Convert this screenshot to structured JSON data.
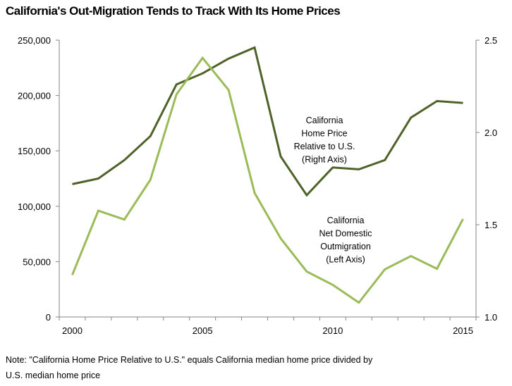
{
  "chart_data": {
    "type": "line",
    "title": "California's Out-Migration Tends to Track With Its Home Prices",
    "x": [
      2000,
      2001,
      2002,
      2003,
      2004,
      2005,
      2006,
      2007,
      2008,
      2009,
      2010,
      2011,
      2012,
      2013,
      2014,
      2015
    ],
    "x_tick_labels": [
      "2000",
      "2005",
      "2010",
      "2015"
    ],
    "x_tick_values": [
      2000,
      2005,
      2010,
      2015
    ],
    "left_axis": {
      "ylim": [
        0,
        250000
      ],
      "ticks": [
        "0",
        "50,000",
        "100,000",
        "150,000",
        "200,000",
        "250,000"
      ],
      "tick_values": [
        0,
        50000,
        100000,
        150000,
        200000,
        250000
      ]
    },
    "right_axis": {
      "ylim": [
        1.0,
        2.5
      ],
      "ticks": [
        "1.0",
        "1.5",
        "2.0",
        "2.5"
      ],
      "tick_values": [
        1.0,
        1.5,
        2.0,
        2.5
      ]
    },
    "series": [
      {
        "name": "California Home Price Relative to U.S. (Right Axis)",
        "axis": "right",
        "color": "#4f6228",
        "values": [
          1.72,
          1.75,
          1.85,
          1.98,
          2.26,
          2.32,
          2.4,
          2.46,
          1.87,
          1.66,
          1.81,
          1.8,
          1.85,
          2.08,
          2.17,
          2.16
        ]
      },
      {
        "name": "California Net Domestic Outmigration (Left Axis)",
        "axis": "left",
        "color": "#9bbb59",
        "values": [
          38000,
          96000,
          88000,
          124000,
          201000,
          234000,
          205000,
          112000,
          71000,
          41000,
          29000,
          13000,
          43000,
          55000,
          43500,
          88500
        ]
      }
    ],
    "annotations": [
      {
        "series": 0,
        "lines": [
          "California",
          "Home Price",
          "Relative to U.S.",
          "(Right Axis)"
        ]
      },
      {
        "series": 1,
        "lines": [
          "California",
          "Net Domestic",
          "Outmigration",
          "(Left Axis)"
        ]
      }
    ],
    "grid": false,
    "axis_color": "#868686"
  },
  "note": {
    "line1": "Note: \"California Home Price Relative to U.S.\" equals California median home price divided by",
    "line2": "U.S. median home price"
  }
}
